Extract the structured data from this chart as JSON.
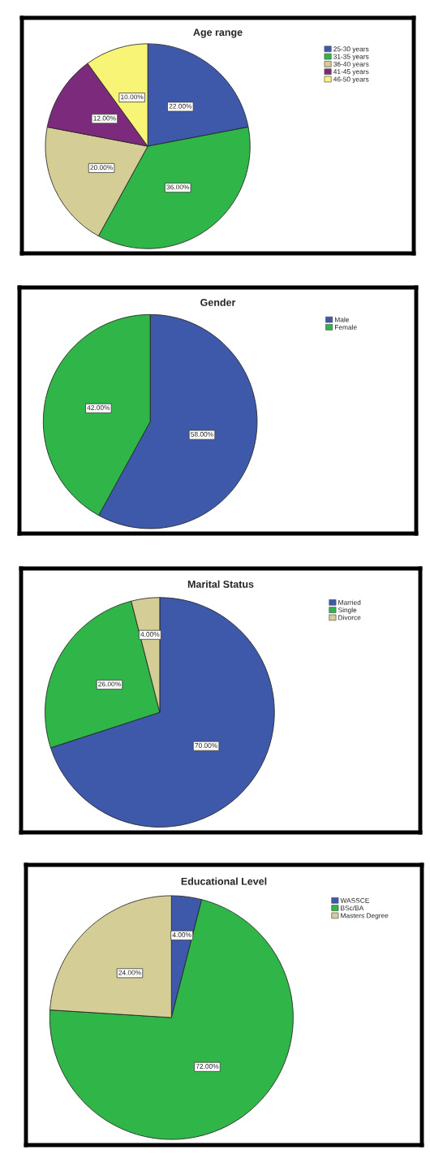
{
  "chart_data": [
    {
      "type": "pie",
      "title": "Age range",
      "categories": [
        "25-30 years",
        "31-35 years",
        "36-40 years",
        "41-45 years",
        "46-50 years"
      ],
      "values": [
        22,
        36,
        20,
        12,
        10
      ],
      "colors": [
        "#3e58aa",
        "#30b548",
        "#d4cd96",
        "#7c2a7c",
        "#f8f475"
      ],
      "value_labels": [
        "22.00%",
        "36.00%",
        "20.00%",
        "12.00%",
        "10.00%"
      ],
      "legend": "top right"
    },
    {
      "type": "pie",
      "title": "Gender",
      "categories": [
        "Male",
        "Female"
      ],
      "values": [
        58,
        42
      ],
      "colors": [
        "#3e58aa",
        "#30b548"
      ],
      "value_labels": [
        "58.00%",
        "42.00%"
      ],
      "legend": "top right"
    },
    {
      "type": "pie",
      "title": "Marital Status",
      "categories": [
        "Married",
        "Single",
        "Divorce"
      ],
      "values": [
        70,
        26,
        4
      ],
      "colors": [
        "#3e58aa",
        "#30b548",
        "#d4cd96"
      ],
      "value_labels": [
        "70.00%",
        "26.00%",
        "4.00%"
      ],
      "legend": "top right"
    },
    {
      "type": "pie",
      "title": "Educational Level",
      "categories": [
        "WASSCE",
        "BSc/BA",
        "Masters Degree"
      ],
      "values": [
        4,
        72,
        24
      ],
      "colors": [
        "#3e58aa",
        "#30b548",
        "#d4cd96"
      ],
      "value_labels": [
        "4.00%",
        "72.00%",
        "24.00%"
      ],
      "legend": "top right"
    }
  ]
}
